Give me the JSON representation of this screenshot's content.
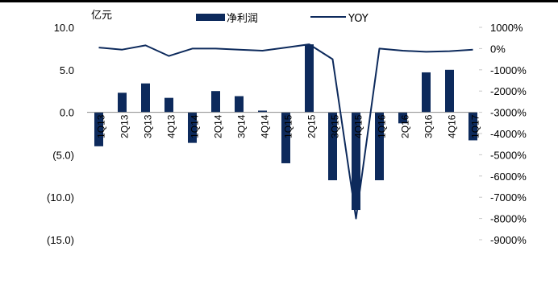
{
  "chart_data": {
    "type": "bar",
    "title": "",
    "y_unit_label": "亿元",
    "categories": [
      "1Q13",
      "2Q13",
      "3Q13",
      "4Q13",
      "1Q14",
      "2Q14",
      "3Q14",
      "4Q14",
      "1Q15",
      "2Q15",
      "3Q15",
      "4Q15",
      "1Q16",
      "2Q16",
      "3Q16",
      "4Q16",
      "1Q17"
    ],
    "series": [
      {
        "name": "净利润",
        "type": "bar",
        "axis": "left",
        "color": "#0d2a5c",
        "values": [
          -4.0,
          2.3,
          3.4,
          1.7,
          -3.6,
          2.5,
          1.9,
          0.2,
          -6.0,
          8.0,
          -8.0,
          -11.5,
          -8.0,
          -1.3,
          4.7,
          5.0,
          -3.3
        ]
      },
      {
        "name": "YOY",
        "type": "line",
        "axis": "right",
        "color": "#0d2a5c",
        "values": [
          50,
          -50,
          150,
          -350,
          0,
          0,
          -50,
          -100,
          50,
          200,
          -500,
          -8000,
          0,
          -100,
          -150,
          -120,
          -50
        ]
      }
    ],
    "y_left": {
      "min": -15,
      "max": 10,
      "ticks": [
        "10.0",
        "5.0",
        "0.0",
        "(5.0)",
        "(10.0)",
        "(15.0)"
      ],
      "tick_values": [
        10,
        5,
        0,
        -5,
        -10,
        -15
      ]
    },
    "y_right": {
      "min": -9000,
      "max": 1000,
      "ticks": [
        "1000%",
        "0%",
        "-1000%",
        "-2000%",
        "-3000%",
        "-4000%",
        "-5000%",
        "-6000%",
        "-7000%",
        "-8000%",
        "-9000%"
      ],
      "tick_values": [
        1000,
        0,
        -1000,
        -2000,
        -3000,
        -4000,
        -5000,
        -6000,
        -7000,
        -8000,
        -9000
      ]
    },
    "legend_position": "top",
    "grid": false
  }
}
